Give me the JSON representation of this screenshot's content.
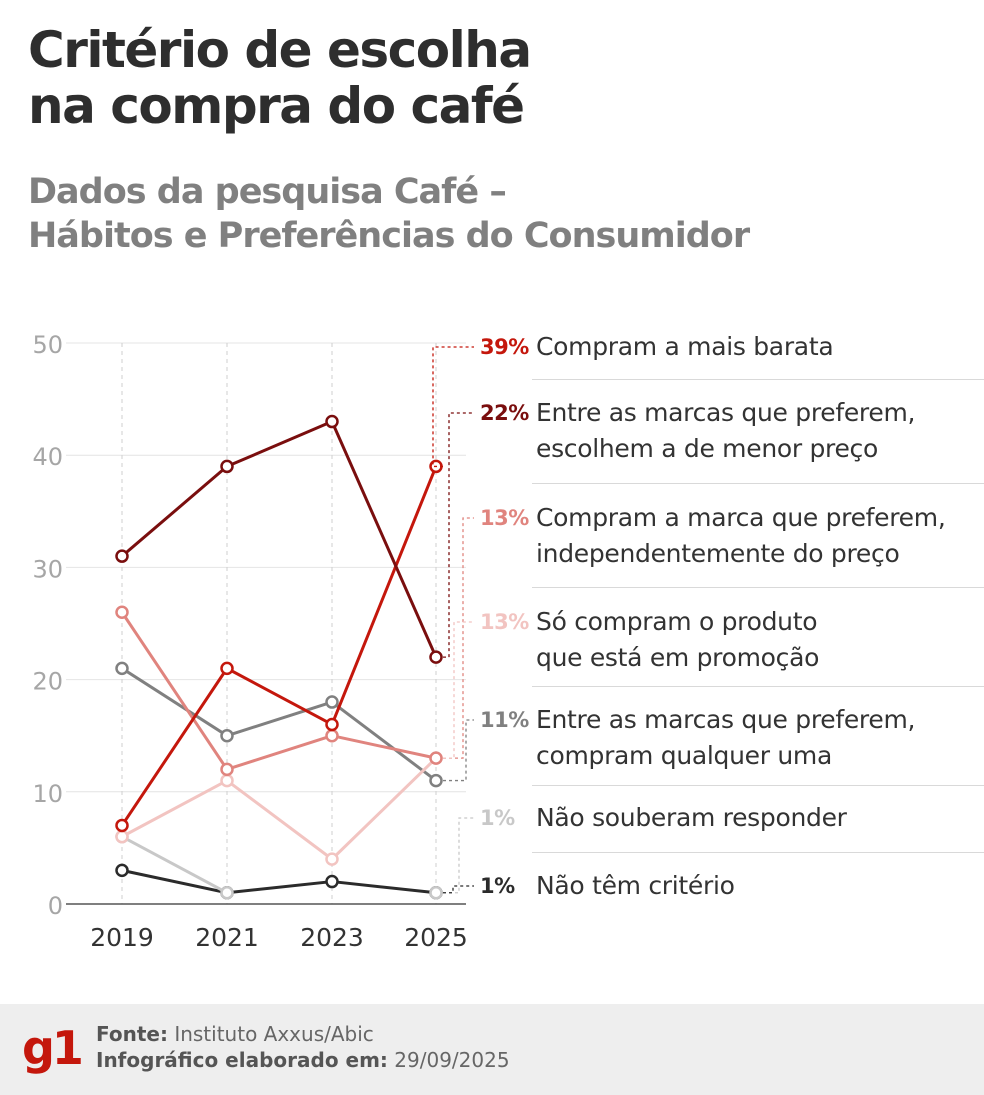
{
  "title_lines": [
    "Critério de escolha",
    "na compra do café"
  ],
  "subtitle_lines": [
    "Dados da pesquisa Café –",
    "Hábitos e Preferências do Consumidor"
  ],
  "chart_data": {
    "type": "line",
    "x": [
      "2019",
      "2021",
      "2023",
      "2025"
    ],
    "ylim": [
      0,
      50
    ],
    "yticks": [
      "0",
      "10",
      "20",
      "30",
      "40",
      "50"
    ],
    "grid": true,
    "legend_position": "right",
    "series": [
      {
        "name": "Compram a mais barata",
        "values": [
          7,
          21,
          16,
          39
        ],
        "color": "#c4170c",
        "pct_label": "39%",
        "label_lines": [
          "Compram a mais barata"
        ]
      },
      {
        "name": "Entre as marcas que preferem, escolhem a de menor preço",
        "values": [
          31,
          39,
          43,
          22
        ],
        "color": "#7a0e0e",
        "pct_label": "22%",
        "label_lines": [
          "Entre as marcas que preferem,",
          "escolhem a de menor preço"
        ]
      },
      {
        "name": "Compram a marca que preferem, independentemente do preço",
        "values": [
          26,
          12,
          15,
          13
        ],
        "color": "#e0847e",
        "pct_label": "13%",
        "label_lines": [
          "Compram a marca que preferem,",
          "independentemente do preço"
        ]
      },
      {
        "name": "Só compram o produto que está em promoção",
        "values": [
          6,
          11,
          4,
          13
        ],
        "color": "#f2c4c1",
        "pct_label": "13%",
        "label_lines": [
          "Só compram o produto",
          "que está em promoção"
        ]
      },
      {
        "name": "Entre as marcas que preferem, compram qualquer uma",
        "values": [
          21,
          15,
          18,
          11
        ],
        "color": "#808080",
        "pct_label": "11%",
        "label_lines": [
          "Entre as marcas que preferem,",
          "compram qualquer uma"
        ]
      },
      {
        "name": "Não souberam responder",
        "values": [
          6,
          1,
          null,
          1
        ],
        "color": "#c8c8c8",
        "pct_label": "1%",
        "label_lines": [
          "Não souberam responder"
        ]
      },
      {
        "name": "Não têm critério",
        "values": [
          3,
          1,
          2,
          1
        ],
        "color": "#2b2b2b",
        "pct_label": "1%",
        "label_lines": [
          "Não têm critério"
        ]
      }
    ]
  },
  "footer": {
    "logo_text": "g1",
    "logo_color": "#c4170c",
    "source_label": "Fonte:",
    "source_value": "Instituto Axxus/Abic",
    "date_label": "Infográfico elaborado em:",
    "date_value": "29/09/2025"
  }
}
